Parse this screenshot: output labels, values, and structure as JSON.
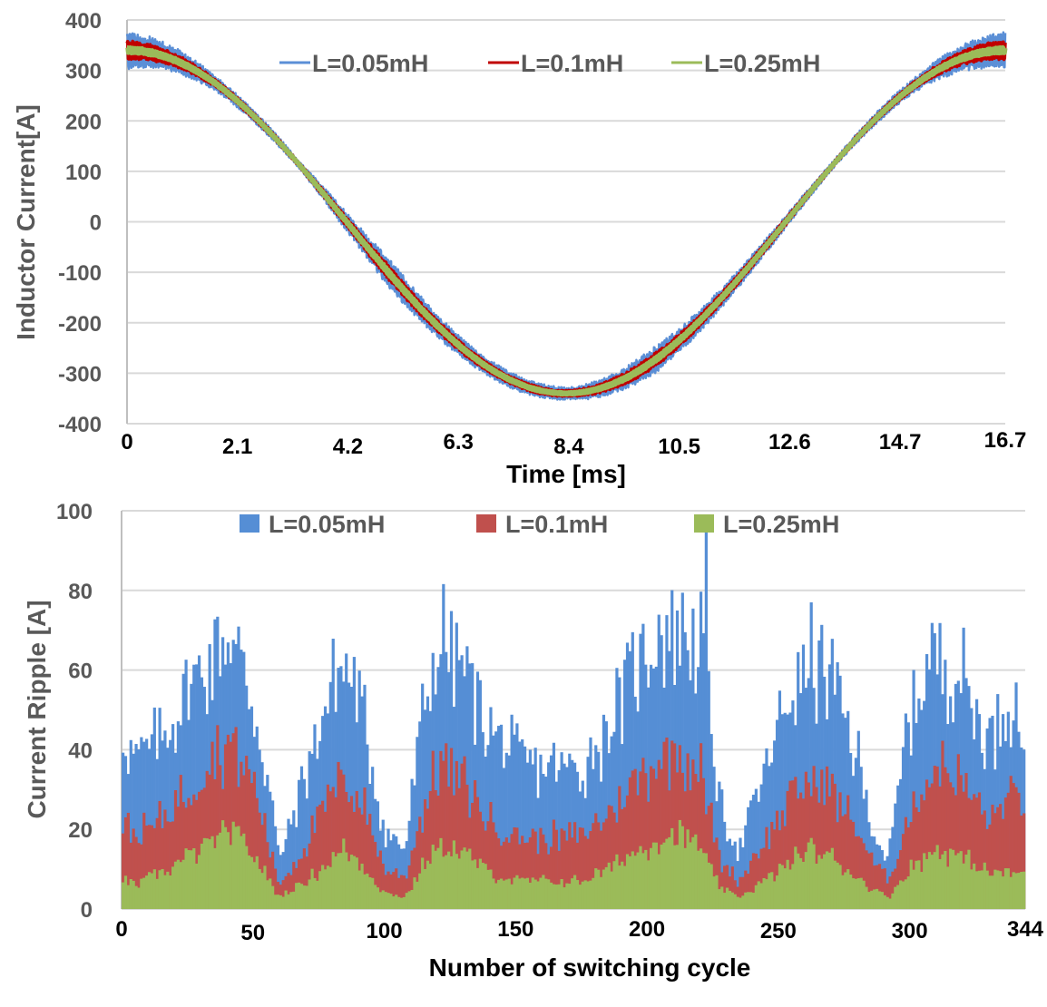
{
  "chart_data": [
    {
      "type": "line",
      "title": "",
      "xlabel": "Time [ms]",
      "ylabel": "Inductor Current[A]",
      "xlim": [
        0,
        16.7
      ],
      "ylim": [
        -400,
        400
      ],
      "x_ticks": [
        "0",
        "2.1",
        "4.2",
        "6.3",
        "8.4",
        "10.5",
        "12.6",
        "14.7",
        "16.7"
      ],
      "x_tick_values": [
        0,
        2.1,
        4.2,
        6.3,
        8.4,
        10.5,
        12.6,
        14.7,
        16.7
      ],
      "y_ticks": [
        "400",
        "300",
        "200",
        "100",
        "0",
        "-100",
        "-200",
        "-300",
        "-400"
      ],
      "y_tick_values": [
        400,
        300,
        200,
        100,
        0,
        -100,
        -200,
        -300,
        -400
      ],
      "grid": true,
      "legend_position": "top-center",
      "fundamental": {
        "shape": "cosine",
        "amplitude_A": 340,
        "period_ms": 16.7
      },
      "series": [
        {
          "name": "L=0.05mH",
          "color": "#5B8FD6",
          "ripple_peak_to_peak_A": [
            75,
            30,
            15,
            60,
            35,
            25,
            55,
            35,
            15,
            30,
            75
          ],
          "ripple_at_x": [
            0,
            1.7,
            3.3,
            5,
            6.7,
            8.4,
            10,
            11.7,
            13.4,
            15,
            16.7
          ]
        },
        {
          "name": "L=0.1mH",
          "color": "#C00000",
          "ripple_peak_to_peak_A": [
            38,
            15,
            8,
            30,
            18,
            12,
            28,
            18,
            8,
            15,
            38
          ],
          "ripple_at_x": [
            0,
            1.7,
            3.3,
            5,
            6.7,
            8.4,
            10,
            11.7,
            13.4,
            15,
            16.7
          ]
        },
        {
          "name": "L=0.25mH",
          "color": "#9BBB59",
          "ripple_peak_to_peak_A": [
            12,
            6,
            3,
            10,
            6,
            4,
            9,
            6,
            3,
            6,
            12
          ],
          "ripple_at_x": [
            0,
            1.7,
            3.3,
            5,
            6.7,
            8.4,
            10,
            11.7,
            13.4,
            15,
            16.7
          ]
        }
      ]
    },
    {
      "type": "bar",
      "stacked": "overlapping",
      "title": "",
      "xlabel": "Number of switching cycle",
      "ylabel": "Current Ripple [A]",
      "xlim": [
        0,
        344
      ],
      "ylim": [
        0,
        100
      ],
      "x_ticks": [
        "0",
        "50",
        "100",
        "150",
        "200",
        "250",
        "300",
        "344"
      ],
      "x_tick_values": [
        0,
        50,
        100,
        150,
        200,
        250,
        300,
        344
      ],
      "y_ticks": [
        "100",
        "80",
        "60",
        "40",
        "20",
        "0"
      ],
      "y_tick_values": [
        100,
        80,
        60,
        40,
        20,
        0
      ],
      "grid": true,
      "legend_position": "top-center",
      "envelope_cycles": [
        0,
        5,
        15,
        25,
        35,
        42,
        50,
        57,
        60,
        68,
        78,
        85,
        92,
        100,
        108,
        115,
        122,
        130,
        140,
        150,
        160,
        175,
        185,
        195,
        205,
        212,
        220,
        223,
        228,
        235,
        245,
        255,
        262,
        270,
        280,
        286,
        292,
        300,
        310,
        320,
        330,
        338,
        344
      ],
      "series": [
        {
          "name": "L=0.05mH",
          "color": "#558ED5",
          "values": [
            45,
            38,
            42,
            55,
            65,
            68,
            52,
            28,
            12,
            30,
            52,
            62,
            48,
            20,
            15,
            50,
            68,
            62,
            45,
            38,
            36,
            35,
            45,
            60,
            70,
            72,
            68,
            55,
            25,
            15,
            35,
            55,
            62,
            58,
            38,
            20,
            12,
            50,
            65,
            58,
            42,
            55,
            42
          ]
        },
        {
          "name": "L=0.1mH",
          "color": "#C0504D",
          "values": [
            22,
            18,
            22,
            30,
            38,
            42,
            32,
            14,
            6,
            14,
            26,
            33,
            26,
            10,
            8,
            26,
            38,
            32,
            22,
            18,
            18,
            18,
            24,
            32,
            38,
            40,
            36,
            26,
            12,
            7,
            18,
            28,
            32,
            30,
            20,
            12,
            7,
            24,
            36,
            32,
            22,
            28,
            27
          ]
        },
        {
          "name": "L=0.25mH",
          "color": "#9BBB59",
          "values": [
            8,
            6,
            9,
            13,
            17,
            19,
            14,
            6,
            3,
            6,
            11,
            15,
            11,
            4,
            3,
            11,
            16,
            14,
            9,
            7,
            7,
            7,
            10,
            14,
            18,
            19,
            16,
            11,
            5,
            3,
            7,
            12,
            15,
            13,
            8,
            5,
            3,
            10,
            15,
            13,
            9,
            9,
            9
          ]
        }
      ]
    }
  ]
}
